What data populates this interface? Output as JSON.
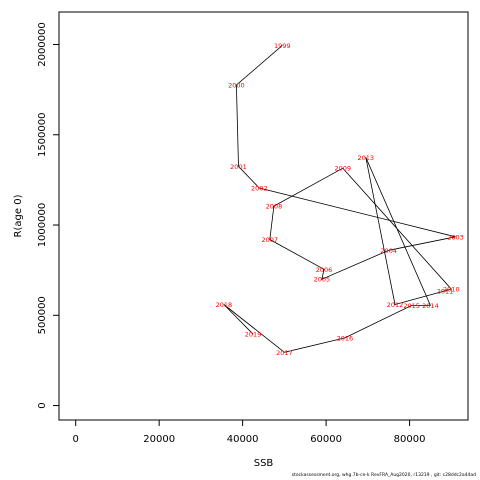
{
  "chart_data": {
    "type": "line",
    "xlabel": "SSB",
    "ylabel": "R(age 0)",
    "xlim": [
      -4000,
      94000
    ],
    "ylim": [
      -80000,
      2180000
    ],
    "x_ticks": [
      0,
      20000,
      40000,
      60000,
      80000
    ],
    "y_ticks": [
      0,
      500000,
      1000000,
      1500000,
      2000000
    ],
    "grid": false,
    "legend": "none",
    "line_color": "#000000",
    "label_color": "#ff0000",
    "points": [
      {
        "label": "1999",
        "x": 49500,
        "y": 1995000
      },
      {
        "label": "2000",
        "x": 38500,
        "y": 1775000
      },
      {
        "label": "2001",
        "x": 39000,
        "y": 1325000
      },
      {
        "label": "2002",
        "x": 44000,
        "y": 1205000
      },
      {
        "label": "2003",
        "x": 91000,
        "y": 935000
      },
      {
        "label": "2004",
        "x": 75000,
        "y": 860000
      },
      {
        "label": "2005",
        "x": 59000,
        "y": 700000
      },
      {
        "label": "2006",
        "x": 59500,
        "y": 755000
      },
      {
        "label": "2007",
        "x": 46500,
        "y": 920000
      },
      {
        "label": "2008",
        "x": 47500,
        "y": 1105000
      },
      {
        "label": "2009",
        "x": 64000,
        "y": 1315000
      },
      {
        "label": "2010",
        "x": 90000,
        "y": 645000
      },
      {
        "label": "2011",
        "x": 88500,
        "y": 635000
      },
      {
        "label": "2012",
        "x": 76500,
        "y": 560000
      },
      {
        "label": "2013",
        "x": 69500,
        "y": 1375000
      },
      {
        "label": "2014",
        "x": 85000,
        "y": 555000
      },
      {
        "label": "2015",
        "x": 80500,
        "y": 555000
      },
      {
        "label": "2016",
        "x": 64500,
        "y": 375000
      },
      {
        "label": "2017",
        "x": 50000,
        "y": 295000
      },
      {
        "label": "2018",
        "x": 35500,
        "y": 560000
      },
      {
        "label": "2019",
        "x": 42500,
        "y": 395000
      }
    ]
  },
  "footnote": "stockassessment.org, whg.7b-ce-k  RevFRA_Aug2020, r13219 ,  git: c28ddc2a44ad"
}
